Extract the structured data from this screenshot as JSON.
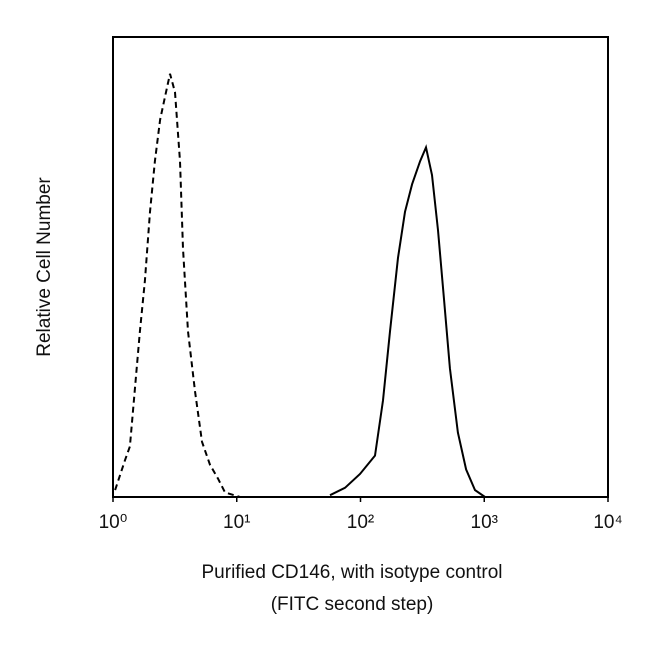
{
  "chart_data": {
    "type": "line",
    "ylabel": "Relative Cell Number",
    "xlabel": [
      "Purified CD146, with isotype control",
      "(FITC second step)"
    ],
    "xscale": "log",
    "xlim": [
      1,
      10000
    ],
    "ylim": [
      0,
      100
    ],
    "xticks": [
      {
        "value": 1,
        "label": "10⁰"
      },
      {
        "value": 10,
        "label": "10¹"
      },
      {
        "value": 100,
        "label": "10²"
      },
      {
        "value": 1000,
        "label": "10³"
      },
      {
        "value": 10000,
        "label": "10⁴"
      }
    ],
    "series": [
      {
        "color": "#000000",
        "dashed": true,
        "x": [
          1.04,
          1.25,
          1.37,
          1.65,
          1.81,
          1.99,
          2.18,
          2.4,
          2.63,
          2.89,
          3.17,
          3.48,
          3.68,
          4.04,
          4.6,
          5.24,
          6.08,
          7.06,
          8.04,
          10.6
        ],
        "values": [
          1.5,
          8,
          11,
          36,
          47,
          62,
          73,
          82,
          87,
          92,
          88,
          73,
          54,
          36,
          23,
          12,
          7,
          4,
          1,
          0
        ]
      },
      {
        "color": "#000000",
        "dashed": false,
        "x": [
          56.7,
          75,
          99,
          131,
          152,
          173,
          201,
          229,
          261,
          303,
          338,
          378,
          423,
          473,
          528,
          613,
          713,
          842,
          1014
        ],
        "values": [
          0.4,
          2,
          5,
          9,
          21,
          36,
          52,
          62,
          68,
          73,
          76,
          70,
          58,
          43,
          28,
          14,
          6,
          1.5,
          0
        ]
      }
    ]
  }
}
